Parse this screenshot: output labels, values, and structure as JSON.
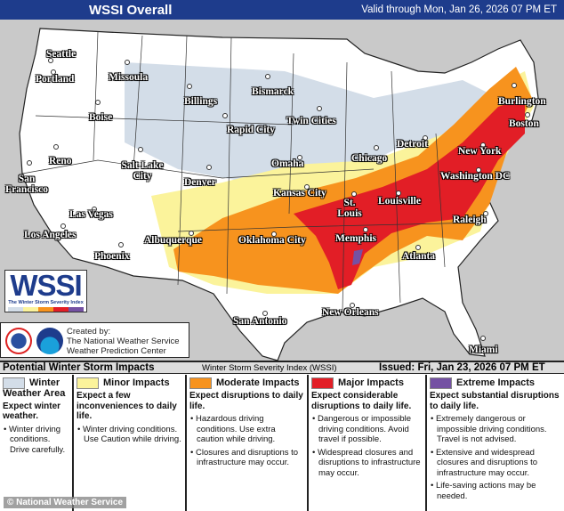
{
  "header": {
    "title": "WSSI Overall",
    "valid": "Valid through Mon, Jan 26, 2026 07 PM ET"
  },
  "colors": {
    "header": "#1e3c8c",
    "winter": "#d3dde8",
    "minor": "#fbf39b",
    "moderate": "#f7931e",
    "major": "#e21e26",
    "extreme": "#7451a3",
    "land": "#ffffff",
    "outside": "#c9c9c9"
  },
  "cities": [
    "Seattle",
    "Portland",
    "Missoula",
    "Bismarck",
    "Billings",
    "Boise",
    "Rapid City",
    "Twin Cities",
    "Burlington",
    "Boston",
    "Reno",
    "Salt Lake City",
    "Denver",
    "Omaha",
    "Chicago",
    "Detroit",
    "New York",
    "San Francisco",
    "Kansas City",
    "Washington DC",
    "St. Louis",
    "Louisville",
    "Las Vegas",
    "Los Angeles",
    "Albuquerque",
    "Oklahoma City",
    "Memphis",
    "Raleigh",
    "Atlanta",
    "Phoenix",
    "San Antonio",
    "New Orleans",
    "Miami"
  ],
  "logo": {
    "text": "WSSI",
    "subtitle": "The Winter Storm Severity Index"
  },
  "credit": {
    "line1": "Created by:",
    "line2": "The National Weather Service",
    "line3": "Weather Prediction Center"
  },
  "legend": {
    "title": "Potential Winter Storm Impacts",
    "index": "Winter Storm Severity Index (WSSI)",
    "issued": "Issued: Fri, Jan 23, 2026 07 PM ET",
    "categories": [
      {
        "name": "Winter Weather Area",
        "head": "Expect winter weather.",
        "bullets": [
          "Winter driving conditions. Drive carefully."
        ]
      },
      {
        "name": "Minor Impacts",
        "head": "Expect a few inconveniences to daily life.",
        "bullets": [
          "Winter driving conditions. Use Caution while driving."
        ]
      },
      {
        "name": "Moderate Impacts",
        "head": "Expect disruptions to daily life.",
        "bullets": [
          "Hazardous driving conditions. Use extra caution while driving.",
          "Closures and disruptions to infrastructure may occur."
        ]
      },
      {
        "name": "Major Impacts",
        "head": "Expect considerable disruptions to daily life.",
        "bullets": [
          "Dangerous or impossible driving conditions. Avoid travel if possible.",
          "Widespread closures and disruptions to infrastructure may occur."
        ]
      },
      {
        "name": "Extreme Impacts",
        "head": "Expect substantial disruptions to daily life.",
        "bullets": [
          "Extremely dangerous or impossible driving conditions. Travel is not advised.",
          "Extensive and widespread closures and disruptions to infrastructure may occur.",
          "Life-saving actions may be needed."
        ]
      }
    ]
  },
  "watermark": "© National Weather Service"
}
